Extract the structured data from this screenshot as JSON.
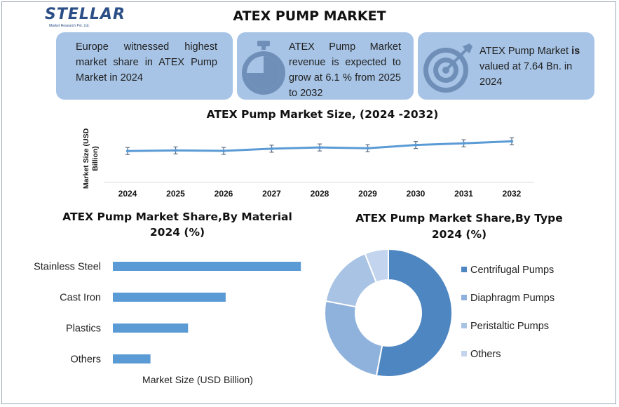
{
  "header": {
    "logo_text": "STELLAR",
    "logo_sub": "Market Research Pvt. Ltd.",
    "title": "ATEX PUMP MARKET"
  },
  "cards": [
    {
      "text": "Europe witnessed highest market share in ATEX Pump Market in 2024",
      "icon": "map-icon"
    },
    {
      "text": "ATEX Pump Market revenue is expected to grow at 6.1 % from 2025 to 2032",
      "icon": "stopwatch-icon"
    },
    {
      "text_pre": "ATEX Pump Market ",
      "text_bold": "is",
      "text_post": " valued at 7.64 Bn. in 2024",
      "icon": "target-icon"
    }
  ],
  "chart_data": [
    {
      "type": "line",
      "title": "ATEX Pump Market Size, (2024 -2032)",
      "ylabel": "Market Size (USD Billion)",
      "x": [
        "2024",
        "2025",
        "2026",
        "2027",
        "2028",
        "2029",
        "2030",
        "2031",
        "2032"
      ],
      "values": [
        7.64,
        7.9,
        7.7,
        8.6,
        9.1,
        8.8,
        10.1,
        10.8,
        11.6
      ],
      "ylim": [
        0,
        20
      ],
      "error_bars": true,
      "color": "#5b9bd5"
    },
    {
      "type": "bar",
      "orientation": "horizontal",
      "title": "ATEX Pump Market Share,By Material 2024 (%)",
      "xlabel": "Market Size (USD Billion)",
      "categories": [
        "Stainless Steel",
        "Cast Iron",
        "Plastics",
        "Others"
      ],
      "values": [
        50,
        30,
        20,
        10
      ],
      "xlim": [
        0,
        55
      ],
      "color": "#5b9bd5"
    },
    {
      "type": "pie",
      "donut": true,
      "title": "ATEX Pump Market Share,By Type 2024 (%)",
      "categories": [
        "Centrifugal Pumps",
        "Diaphragm Pumps",
        "Peristaltic Pumps",
        "Others"
      ],
      "values": [
        53,
        25,
        16,
        6
      ],
      "colors": [
        "#4e86c2",
        "#8fb2dd",
        "#a9c3e4",
        "#c3d5ee"
      ],
      "legend": "right"
    }
  ]
}
